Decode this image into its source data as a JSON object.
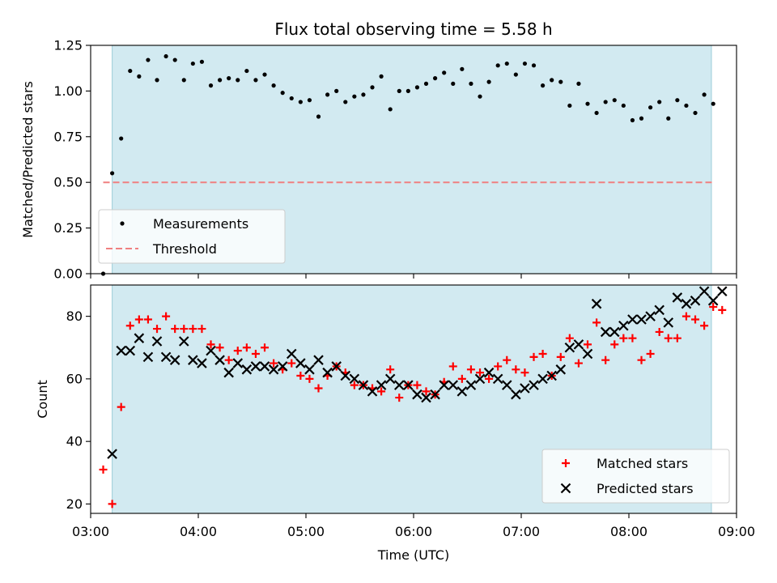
{
  "chart_data": [
    {
      "type": "scatter",
      "title": "Flux total observing time = 5.58 h",
      "xlabel": "",
      "ylabel": "Matched/Predicted stars",
      "xlim": [
        "03:00",
        "09:00"
      ],
      "x_ticks": [],
      "ylim": [
        0,
        1.25
      ],
      "y_ticks": [
        "0.00",
        "0.25",
        "0.50",
        "0.75",
        "1.00",
        "1.25"
      ],
      "shaded_span": [
        "03:12",
        "08:46"
      ],
      "shade_color": "#add8e6",
      "legend_location": "lower left",
      "series": [
        {
          "name": "Measurements",
          "marker": "dot",
          "color": "#000000",
          "points": [
            [
              "03:07",
              0.0
            ],
            [
              "03:12",
              0.55
            ],
            [
              "03:17",
              0.74
            ],
            [
              "03:22",
              1.11
            ],
            [
              "03:27",
              1.08
            ],
            [
              "03:32",
              1.17
            ],
            [
              "03:37",
              1.06
            ],
            [
              "03:42",
              1.19
            ],
            [
              "03:47",
              1.17
            ],
            [
              "03:52",
              1.06
            ],
            [
              "03:57",
              1.15
            ],
            [
              "04:02",
              1.16
            ],
            [
              "04:07",
              1.03
            ],
            [
              "04:12",
              1.06
            ],
            [
              "04:17",
              1.07
            ],
            [
              "04:22",
              1.06
            ],
            [
              "04:27",
              1.11
            ],
            [
              "04:32",
              1.06
            ],
            [
              "04:37",
              1.09
            ],
            [
              "04:42",
              1.03
            ],
            [
              "04:47",
              0.99
            ],
            [
              "04:52",
              0.96
            ],
            [
              "04:57",
              0.94
            ],
            [
              "05:02",
              0.95
            ],
            [
              "05:07",
              0.86
            ],
            [
              "05:12",
              0.98
            ],
            [
              "05:17",
              1.0
            ],
            [
              "05:22",
              0.94
            ],
            [
              "05:27",
              0.97
            ],
            [
              "05:32",
              0.98
            ],
            [
              "05:37",
              1.02
            ],
            [
              "05:42",
              1.08
            ],
            [
              "05:47",
              0.9
            ],
            [
              "05:52",
              1.0
            ],
            [
              "05:57",
              1.0
            ],
            [
              "06:02",
              1.02
            ],
            [
              "06:07",
              1.04
            ],
            [
              "06:12",
              1.07
            ],
            [
              "06:17",
              1.1
            ],
            [
              "06:22",
              1.04
            ],
            [
              "06:27",
              1.12
            ],
            [
              "06:32",
              1.04
            ],
            [
              "06:37",
              0.97
            ],
            [
              "06:42",
              1.05
            ],
            [
              "06:47",
              1.14
            ],
            [
              "06:52",
              1.15
            ],
            [
              "06:57",
              1.09
            ],
            [
              "07:02",
              1.15
            ],
            [
              "07:07",
              1.14
            ],
            [
              "07:12",
              1.03
            ],
            [
              "07:17",
              1.06
            ],
            [
              "07:22",
              1.05
            ],
            [
              "07:27",
              0.92
            ],
            [
              "07:32",
              1.04
            ],
            [
              "07:37",
              0.93
            ],
            [
              "07:42",
              0.88
            ],
            [
              "07:47",
              0.94
            ],
            [
              "07:52",
              0.95
            ],
            [
              "07:57",
              0.92
            ],
            [
              "08:02",
              0.84
            ],
            [
              "08:07",
              0.85
            ],
            [
              "08:12",
              0.91
            ],
            [
              "08:17",
              0.94
            ],
            [
              "08:22",
              0.85
            ],
            [
              "08:27",
              0.95
            ],
            [
              "08:32",
              0.92
            ],
            [
              "08:37",
              0.88
            ],
            [
              "08:42",
              0.98
            ],
            [
              "08:47",
              0.93
            ]
          ]
        },
        {
          "name": "Threshold",
          "marker": "dashed-line",
          "color": "#f08080",
          "points": [
            [
              "03:07",
              0.5
            ],
            [
              "08:47",
              0.5
            ]
          ]
        }
      ]
    },
    {
      "type": "scatter",
      "title": "",
      "xlabel": "Time (UTC)",
      "ylabel": "Count",
      "xlim": [
        "03:00",
        "09:00"
      ],
      "x_ticks": [
        "03:00",
        "04:00",
        "05:00",
        "06:00",
        "07:00",
        "08:00",
        "09:00"
      ],
      "ylim": [
        17,
        90
      ],
      "y_ticks": [
        "20",
        "40",
        "60",
        "80"
      ],
      "shaded_span": [
        "03:12",
        "08:46"
      ],
      "shade_color": "#add8e6",
      "legend_location": "lower right",
      "series": [
        {
          "name": "Matched stars",
          "marker": "plus",
          "color": "#ff0000",
          "points": [
            [
              "03:07",
              31
            ],
            [
              "03:12",
              20
            ],
            [
              "03:17",
              51
            ],
            [
              "03:22",
              77
            ],
            [
              "03:27",
              79
            ],
            [
              "03:32",
              79
            ],
            [
              "03:37",
              76
            ],
            [
              "03:42",
              80
            ],
            [
              "03:47",
              76
            ],
            [
              "03:52",
              76
            ],
            [
              "03:57",
              76
            ],
            [
              "04:02",
              76
            ],
            [
              "04:07",
              71
            ],
            [
              "04:12",
              70
            ],
            [
              "04:17",
              66
            ],
            [
              "04:22",
              69
            ],
            [
              "04:27",
              70
            ],
            [
              "04:32",
              68
            ],
            [
              "04:37",
              70
            ],
            [
              "04:42",
              65
            ],
            [
              "04:47",
              63
            ],
            [
              "04:52",
              65
            ],
            [
              "04:57",
              61
            ],
            [
              "05:02",
              60
            ],
            [
              "05:07",
              57
            ],
            [
              "05:12",
              61
            ],
            [
              "05:17",
              64
            ],
            [
              "05:22",
              62
            ],
            [
              "05:27",
              58
            ],
            [
              "05:32",
              58
            ],
            [
              "05:37",
              57
            ],
            [
              "05:42",
              56
            ],
            [
              "05:47",
              63
            ],
            [
              "05:52",
              54
            ],
            [
              "05:57",
              58
            ],
            [
              "06:02",
              58
            ],
            [
              "06:07",
              56
            ],
            [
              "06:12",
              55
            ],
            [
              "06:17",
              59
            ],
            [
              "06:22",
              64
            ],
            [
              "06:27",
              60
            ],
            [
              "06:32",
              63
            ],
            [
              "06:37",
              62
            ],
            [
              "06:42",
              60
            ],
            [
              "06:47",
              64
            ],
            [
              "06:52",
              66
            ],
            [
              "06:57",
              63
            ],
            [
              "07:02",
              62
            ],
            [
              "07:07",
              67
            ],
            [
              "07:12",
              68
            ],
            [
              "07:17",
              61
            ],
            [
              "07:22",
              67
            ],
            [
              "07:27",
              73
            ],
            [
              "07:32",
              65
            ],
            [
              "07:37",
              71
            ],
            [
              "07:42",
              78
            ],
            [
              "07:47",
              66
            ],
            [
              "07:52",
              71
            ],
            [
              "07:57",
              73
            ],
            [
              "08:02",
              73
            ],
            [
              "08:07",
              66
            ],
            [
              "08:12",
              68
            ],
            [
              "08:17",
              75
            ],
            [
              "08:22",
              73
            ],
            [
              "08:27",
              73
            ],
            [
              "08:32",
              80
            ],
            [
              "08:37",
              79
            ],
            [
              "08:42",
              77
            ],
            [
              "08:47",
              83
            ],
            [
              "08:52",
              82
            ]
          ]
        },
        {
          "name": "Predicted stars",
          "marker": "x",
          "color": "#000000",
          "points": [
            [
              "03:12",
              36
            ],
            [
              "03:17",
              69
            ],
            [
              "03:22",
              69
            ],
            [
              "03:27",
              73
            ],
            [
              "03:32",
              67
            ],
            [
              "03:37",
              72
            ],
            [
              "03:42",
              67
            ],
            [
              "03:47",
              66
            ],
            [
              "03:52",
              72
            ],
            [
              "03:57",
              66
            ],
            [
              "04:02",
              65
            ],
            [
              "04:07",
              69
            ],
            [
              "04:12",
              66
            ],
            [
              "04:17",
              62
            ],
            [
              "04:22",
              65
            ],
            [
              "04:27",
              63
            ],
            [
              "04:32",
              64
            ],
            [
              "04:37",
              64
            ],
            [
              "04:42",
              63
            ],
            [
              "04:47",
              64
            ],
            [
              "04:52",
              68
            ],
            [
              "04:57",
              65
            ],
            [
              "05:02",
              63
            ],
            [
              "05:07",
              66
            ],
            [
              "05:12",
              62
            ],
            [
              "05:17",
              64
            ],
            [
              "05:22",
              61
            ],
            [
              "05:27",
              60
            ],
            [
              "05:32",
              58
            ],
            [
              "05:37",
              56
            ],
            [
              "05:42",
              58
            ],
            [
              "05:47",
              60
            ],
            [
              "05:52",
              58
            ],
            [
              "05:57",
              58
            ],
            [
              "06:02",
              55
            ],
            [
              "06:07",
              54
            ],
            [
              "06:12",
              55
            ],
            [
              "06:17",
              58
            ],
            [
              "06:22",
              58
            ],
            [
              "06:27",
              56
            ],
            [
              "06:32",
              58
            ],
            [
              "06:37",
              60
            ],
            [
              "06:42",
              62
            ],
            [
              "06:47",
              60
            ],
            [
              "06:52",
              58
            ],
            [
              "06:57",
              55
            ],
            [
              "07:02",
              57
            ],
            [
              "07:07",
              58
            ],
            [
              "07:12",
              60
            ],
            [
              "07:17",
              61
            ],
            [
              "07:22",
              63
            ],
            [
              "07:27",
              70
            ],
            [
              "07:32",
              71
            ],
            [
              "07:37",
              68
            ],
            [
              "07:42",
              84
            ],
            [
              "07:47",
              75
            ],
            [
              "07:52",
              75
            ],
            [
              "07:57",
              77
            ],
            [
              "08:02",
              79
            ],
            [
              "08:07",
              79
            ],
            [
              "08:12",
              80
            ],
            [
              "08:17",
              82
            ],
            [
              "08:22",
              78
            ],
            [
              "08:27",
              86
            ],
            [
              "08:32",
              84
            ],
            [
              "08:37",
              85
            ],
            [
              "08:42",
              88
            ],
            [
              "08:47",
              85
            ],
            [
              "08:52",
              88
            ]
          ]
        }
      ]
    }
  ]
}
